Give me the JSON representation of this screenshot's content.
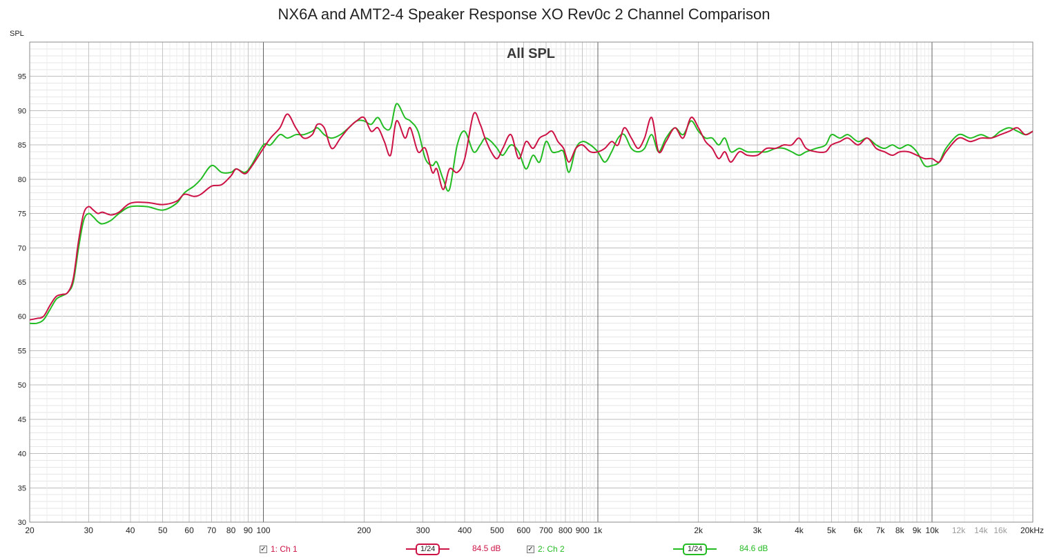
{
  "title": "NX6A and AMT2-4 Speaker Response XO Rev0c 2 Channel Comparison",
  "chart_data": {
    "type": "line",
    "title": "NX6A and AMT2-4 Speaker Response XO Rev0c 2 Channel Comparison",
    "inner_title": "All SPL",
    "ylabel": "SPL",
    "xlabel": "",
    "x_scale": "log",
    "xlim": [
      20,
      20000
    ],
    "ylim": [
      30,
      100
    ],
    "yticks": [
      30,
      35,
      40,
      45,
      50,
      55,
      60,
      65,
      70,
      75,
      80,
      85,
      90,
      95
    ],
    "xticks": [
      {
        "v": 20,
        "label": "20"
      },
      {
        "v": 30,
        "label": "30"
      },
      {
        "v": 40,
        "label": "40"
      },
      {
        "v": 50,
        "label": "50"
      },
      {
        "v": 60,
        "label": "60"
      },
      {
        "v": 70,
        "label": "70"
      },
      {
        "v": 80,
        "label": "80"
      },
      {
        "v": 90,
        "label": "90"
      },
      {
        "v": 100,
        "label": "100"
      },
      {
        "v": 200,
        "label": "200"
      },
      {
        "v": 300,
        "label": "300"
      },
      {
        "v": 400,
        "label": "400"
      },
      {
        "v": 500,
        "label": "500"
      },
      {
        "v": 600,
        "label": "600"
      },
      {
        "v": 700,
        "label": "700"
      },
      {
        "v": 800,
        "label": "800"
      },
      {
        "v": 900,
        "label": "900"
      },
      {
        "v": 1000,
        "label": "1k"
      },
      {
        "v": 2000,
        "label": "2k"
      },
      {
        "v": 3000,
        "label": "3k"
      },
      {
        "v": 4000,
        "label": "4k"
      },
      {
        "v": 5000,
        "label": "5k"
      },
      {
        "v": 6000,
        "label": "6k"
      },
      {
        "v": 7000,
        "label": "7k"
      },
      {
        "v": 8000,
        "label": "8k"
      },
      {
        "v": 9000,
        "label": "9k"
      },
      {
        "v": 10000,
        "label": "10k"
      },
      {
        "v": 12000,
        "label": "12k",
        "muted": true
      },
      {
        "v": 14000,
        "label": "14k",
        "muted": true
      },
      {
        "v": 16000,
        "label": "16k",
        "muted": true
      },
      {
        "v": 20000,
        "label": "20kHz"
      }
    ],
    "grid": true,
    "legend_position": "bottom",
    "series": [
      {
        "name": "1: Ch 1",
        "color": "#cc1144",
        "smoothing": "1/24",
        "level": "84.5 dB",
        "points": [
          [
            20,
            59.5
          ],
          [
            21,
            59.7
          ],
          [
            22,
            60.0
          ],
          [
            23,
            61.6
          ],
          [
            24,
            62.9
          ],
          [
            25,
            63.2
          ],
          [
            26,
            63.5
          ],
          [
            27,
            65.5
          ],
          [
            28,
            71.0
          ],
          [
            29,
            75.0
          ],
          [
            30,
            76.0
          ],
          [
            31,
            75.5
          ],
          [
            32,
            75.0
          ],
          [
            33,
            75.2
          ],
          [
            35,
            74.8
          ],
          [
            37,
            75.2
          ],
          [
            40,
            76.5
          ],
          [
            45,
            76.6
          ],
          [
            50,
            76.3
          ],
          [
            55,
            76.8
          ],
          [
            58,
            77.8
          ],
          [
            62,
            77.5
          ],
          [
            65,
            77.8
          ],
          [
            70,
            79.0
          ],
          [
            75,
            79.2
          ],
          [
            80,
            80.5
          ],
          [
            83,
            81.5
          ],
          [
            88,
            80.8
          ],
          [
            92,
            81.8
          ],
          [
            100,
            84.5
          ],
          [
            105,
            86.0
          ],
          [
            112,
            87.5
          ],
          [
            118,
            89.5
          ],
          [
            125,
            87.5
          ],
          [
            132,
            86.0
          ],
          [
            140,
            86.5
          ],
          [
            145,
            88.0
          ],
          [
            152,
            87.5
          ],
          [
            160,
            84.5
          ],
          [
            170,
            86.0
          ],
          [
            180,
            87.5
          ],
          [
            190,
            88.5
          ],
          [
            200,
            89.0
          ],
          [
            210,
            87.0
          ],
          [
            220,
            87.5
          ],
          [
            230,
            85.5
          ],
          [
            240,
            83.5
          ],
          [
            250,
            88.5
          ],
          [
            265,
            86.0
          ],
          [
            275,
            87.5
          ],
          [
            290,
            84.0
          ],
          [
            305,
            84.5
          ],
          [
            320,
            81.0
          ],
          [
            330,
            81.5
          ],
          [
            345,
            78.5
          ],
          [
            360,
            81.5
          ],
          [
            380,
            81.0
          ],
          [
            400,
            83.0
          ],
          [
            425,
            89.5
          ],
          [
            445,
            88.0
          ],
          [
            460,
            86.0
          ],
          [
            480,
            84.0
          ],
          [
            500,
            83.0
          ],
          [
            520,
            84.5
          ],
          [
            550,
            86.5
          ],
          [
            580,
            83.0
          ],
          [
            610,
            85.5
          ],
          [
            640,
            84.5
          ],
          [
            670,
            86.0
          ],
          [
            700,
            86.5
          ],
          [
            730,
            87.0
          ],
          [
            760,
            85.5
          ],
          [
            790,
            84.5
          ],
          [
            820,
            82.5
          ],
          [
            860,
            84.5
          ],
          [
            900,
            85.0
          ],
          [
            950,
            84.0
          ],
          [
            1000,
            84.0
          ],
          [
            1050,
            84.5
          ],
          [
            1100,
            85.5
          ],
          [
            1150,
            85.0
          ],
          [
            1200,
            87.5
          ],
          [
            1260,
            86.0
          ],
          [
            1320,
            84.5
          ],
          [
            1380,
            86.0
          ],
          [
            1450,
            89.0
          ],
          [
            1520,
            84.0
          ],
          [
            1600,
            85.5
          ],
          [
            1700,
            87.5
          ],
          [
            1800,
            86.0
          ],
          [
            1900,
            89.0
          ],
          [
            2000,
            87.5
          ],
          [
            2100,
            85.5
          ],
          [
            2200,
            84.5
          ],
          [
            2300,
            83.0
          ],
          [
            2400,
            84.0
          ],
          [
            2500,
            82.5
          ],
          [
            2650,
            84.0
          ],
          [
            2800,
            83.5
          ],
          [
            3000,
            83.5
          ],
          [
            3200,
            84.5
          ],
          [
            3400,
            84.5
          ],
          [
            3600,
            85.0
          ],
          [
            3800,
            85.0
          ],
          [
            4000,
            86.0
          ],
          [
            4200,
            84.5
          ],
          [
            4500,
            84.0
          ],
          [
            4800,
            84.0
          ],
          [
            5000,
            85.0
          ],
          [
            5300,
            85.5
          ],
          [
            5600,
            86.0
          ],
          [
            6000,
            85.0
          ],
          [
            6400,
            86.0
          ],
          [
            6800,
            84.5
          ],
          [
            7200,
            84.0
          ],
          [
            7600,
            83.5
          ],
          [
            8000,
            84.0
          ],
          [
            8500,
            84.0
          ],
          [
            9000,
            83.5
          ],
          [
            9500,
            83.0
          ],
          [
            10000,
            83.0
          ],
          [
            10500,
            82.5
          ],
          [
            11000,
            84.0
          ],
          [
            12000,
            86.0
          ],
          [
            13000,
            85.5
          ],
          [
            14000,
            86.0
          ],
          [
            15000,
            86.0
          ],
          [
            16000,
            86.5
          ],
          [
            17000,
            87.0
          ],
          [
            18000,
            87.5
          ],
          [
            19000,
            86.5
          ],
          [
            20000,
            87.0
          ]
        ]
      },
      {
        "name": "2: Ch 2",
        "color": "#22bb22",
        "smoothing": "1/24",
        "level": "84.6 dB",
        "points": [
          [
            20,
            59.0
          ],
          [
            21,
            59.0
          ],
          [
            22,
            59.5
          ],
          [
            23,
            61.0
          ],
          [
            24,
            62.5
          ],
          [
            25,
            63.0
          ],
          [
            26,
            63.5
          ],
          [
            27,
            65.0
          ],
          [
            28,
            70.0
          ],
          [
            29,
            74.0
          ],
          [
            30,
            75.0
          ],
          [
            31,
            74.5
          ],
          [
            32,
            73.8
          ],
          [
            33,
            73.5
          ],
          [
            35,
            74.0
          ],
          [
            37,
            75.0
          ],
          [
            40,
            76.0
          ],
          [
            45,
            76.0
          ],
          [
            50,
            75.5
          ],
          [
            55,
            76.5
          ],
          [
            58,
            78.0
          ],
          [
            62,
            79.0
          ],
          [
            65,
            80.0
          ],
          [
            70,
            82.0
          ],
          [
            75,
            81.0
          ],
          [
            80,
            81.0
          ],
          [
            83,
            81.5
          ],
          [
            88,
            81.0
          ],
          [
            92,
            82.0
          ],
          [
            100,
            85.0
          ],
          [
            105,
            85.0
          ],
          [
            112,
            86.5
          ],
          [
            118,
            86.0
          ],
          [
            125,
            86.5
          ],
          [
            132,
            86.5
          ],
          [
            140,
            87.0
          ],
          [
            145,
            87.5
          ],
          [
            152,
            86.5
          ],
          [
            160,
            86.0
          ],
          [
            170,
            86.5
          ],
          [
            180,
            87.5
          ],
          [
            190,
            88.5
          ],
          [
            200,
            88.5
          ],
          [
            210,
            88.0
          ],
          [
            220,
            89.0
          ],
          [
            230,
            87.5
          ],
          [
            240,
            87.5
          ],
          [
            250,
            91.0
          ],
          [
            265,
            89.0
          ],
          [
            275,
            88.5
          ],
          [
            290,
            87.0
          ],
          [
            305,
            83.0
          ],
          [
            320,
            82.0
          ],
          [
            330,
            82.5
          ],
          [
            345,
            80.0
          ],
          [
            360,
            78.5
          ],
          [
            380,
            85.0
          ],
          [
            400,
            87.0
          ],
          [
            425,
            84.0
          ],
          [
            445,
            85.0
          ],
          [
            460,
            86.0
          ],
          [
            480,
            85.5
          ],
          [
            500,
            84.5
          ],
          [
            520,
            83.5
          ],
          [
            550,
            85.0
          ],
          [
            580,
            84.0
          ],
          [
            610,
            81.5
          ],
          [
            640,
            83.5
          ],
          [
            670,
            82.5
          ],
          [
            700,
            85.5
          ],
          [
            730,
            84.0
          ],
          [
            760,
            84.0
          ],
          [
            790,
            84.0
          ],
          [
            820,
            81.0
          ],
          [
            860,
            84.5
          ],
          [
            900,
            85.5
          ],
          [
            950,
            85.0
          ],
          [
            1000,
            84.0
          ],
          [
            1050,
            82.5
          ],
          [
            1100,
            84.0
          ],
          [
            1150,
            86.0
          ],
          [
            1200,
            86.5
          ],
          [
            1260,
            84.5
          ],
          [
            1320,
            84.0
          ],
          [
            1380,
            84.5
          ],
          [
            1450,
            86.5
          ],
          [
            1520,
            84.0
          ],
          [
            1600,
            86.0
          ],
          [
            1700,
            87.5
          ],
          [
            1800,
            86.5
          ],
          [
            1900,
            88.5
          ],
          [
            2000,
            87.0
          ],
          [
            2100,
            86.0
          ],
          [
            2200,
            86.0
          ],
          [
            2300,
            85.0
          ],
          [
            2400,
            86.0
          ],
          [
            2500,
            84.0
          ],
          [
            2650,
            84.5
          ],
          [
            2800,
            84.0
          ],
          [
            3000,
            84.0
          ],
          [
            3200,
            84.0
          ],
          [
            3400,
            84.5
          ],
          [
            3600,
            84.5
          ],
          [
            3800,
            84.0
          ],
          [
            4000,
            83.5
          ],
          [
            4200,
            84.0
          ],
          [
            4500,
            84.5
          ],
          [
            4800,
            85.0
          ],
          [
            5000,
            86.5
          ],
          [
            5300,
            86.0
          ],
          [
            5600,
            86.5
          ],
          [
            6000,
            85.5
          ],
          [
            6400,
            86.0
          ],
          [
            6800,
            85.0
          ],
          [
            7200,
            84.5
          ],
          [
            7600,
            85.0
          ],
          [
            8000,
            84.5
          ],
          [
            8500,
            85.0
          ],
          [
            9000,
            84.0
          ],
          [
            9500,
            82.0
          ],
          [
            10000,
            82.0
          ],
          [
            10500,
            82.5
          ],
          [
            11000,
            84.5
          ],
          [
            12000,
            86.5
          ],
          [
            13000,
            86.0
          ],
          [
            14000,
            86.5
          ],
          [
            15000,
            86.0
          ],
          [
            16000,
            87.0
          ],
          [
            17000,
            87.5
          ],
          [
            18000,
            87.0
          ],
          [
            19000,
            86.5
          ],
          [
            20000,
            87.0
          ]
        ]
      }
    ]
  }
}
